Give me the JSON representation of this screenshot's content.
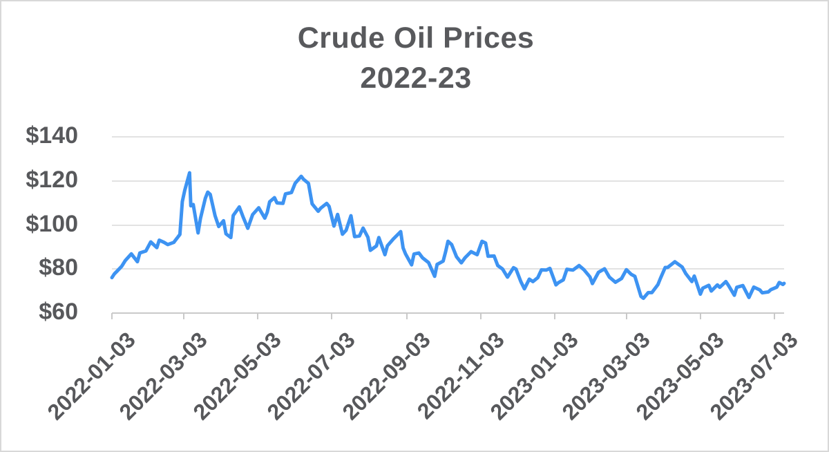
{
  "chart": {
    "title_line1": "Crude Oil Prices",
    "title_line2": "2022-23"
  },
  "chart_data": {
    "type": "line",
    "title": "Crude Oil Prices 2022-23",
    "xlabel": "",
    "ylabel": "",
    "ylim": [
      60,
      140
    ],
    "grid": "horizontal",
    "legend": "none",
    "line_color": "#3d93f2",
    "text_color": "#57585b",
    "y_ticks": [
      {
        "label": "$140",
        "value": 140
      },
      {
        "label": "$120",
        "value": 120
      },
      {
        "label": "$100",
        "value": 100
      },
      {
        "label": "$80",
        "value": 80
      },
      {
        "label": "$60",
        "value": 60
      }
    ],
    "x_ticks": [
      "2022-01-03",
      "2022-03-03",
      "2022-05-03",
      "2022-07-03",
      "2022-09-03",
      "2022-11-03",
      "2023-01-03",
      "2023-03-03",
      "2023-05-03",
      "2023-07-03"
    ],
    "points": [
      [
        "2022-01-03",
        76.1
      ],
      [
        "2022-01-05",
        77.8
      ],
      [
        "2022-01-07",
        78.9
      ],
      [
        "2022-01-11",
        81.2
      ],
      [
        "2022-01-14",
        83.8
      ],
      [
        "2022-01-19",
        86.9
      ],
      [
        "2022-01-24",
        83.3
      ],
      [
        "2022-01-26",
        87.3
      ],
      [
        "2022-01-31",
        88.2
      ],
      [
        "2022-02-04",
        92.3
      ],
      [
        "2022-02-09",
        89.7
      ],
      [
        "2022-02-11",
        93.1
      ],
      [
        "2022-02-15",
        92.1
      ],
      [
        "2022-02-18",
        91.1
      ],
      [
        "2022-02-23",
        92.1
      ],
      [
        "2022-02-28",
        95.7
      ],
      [
        "2022-03-02",
        110.6
      ],
      [
        "2022-03-04",
        115.7
      ],
      [
        "2022-03-08",
        123.7
      ],
      [
        "2022-03-09",
        108.7
      ],
      [
        "2022-03-11",
        109.3
      ],
      [
        "2022-03-15",
        96.4
      ],
      [
        "2022-03-17",
        103.0
      ],
      [
        "2022-03-21",
        112.1
      ],
      [
        "2022-03-23",
        114.9
      ],
      [
        "2022-03-25",
        113.9
      ],
      [
        "2022-03-29",
        104.2
      ],
      [
        "2022-04-01",
        99.3
      ],
      [
        "2022-04-05",
        101.9
      ],
      [
        "2022-04-07",
        96.0
      ],
      [
        "2022-04-11",
        94.3
      ],
      [
        "2022-04-13",
        104.3
      ],
      [
        "2022-04-18",
        108.2
      ],
      [
        "2022-04-21",
        103.8
      ],
      [
        "2022-04-25",
        98.5
      ],
      [
        "2022-04-29",
        104.7
      ],
      [
        "2022-05-04",
        107.8
      ],
      [
        "2022-05-09",
        103.1
      ],
      [
        "2022-05-11",
        105.7
      ],
      [
        "2022-05-13",
        110.5
      ],
      [
        "2022-05-17",
        112.4
      ],
      [
        "2022-05-19",
        110.0
      ],
      [
        "2022-05-24",
        109.8
      ],
      [
        "2022-05-26",
        114.1
      ],
      [
        "2022-05-31",
        114.7
      ],
      [
        "2022-06-03",
        118.9
      ],
      [
        "2022-06-08",
        122.1
      ],
      [
        "2022-06-10",
        120.7
      ],
      [
        "2022-06-14",
        118.9
      ],
      [
        "2022-06-17",
        109.6
      ],
      [
        "2022-06-22",
        106.2
      ],
      [
        "2022-06-24",
        107.6
      ],
      [
        "2022-06-29",
        109.8
      ],
      [
        "2022-07-01",
        108.4
      ],
      [
        "2022-07-05",
        99.5
      ],
      [
        "2022-07-08",
        104.8
      ],
      [
        "2022-07-12",
        95.8
      ],
      [
        "2022-07-15",
        97.6
      ],
      [
        "2022-07-19",
        104.2
      ],
      [
        "2022-07-22",
        94.7
      ],
      [
        "2022-07-26",
        95.0
      ],
      [
        "2022-07-29",
        98.6
      ],
      [
        "2022-08-02",
        94.4
      ],
      [
        "2022-08-04",
        88.5
      ],
      [
        "2022-08-09",
        90.5
      ],
      [
        "2022-08-11",
        94.3
      ],
      [
        "2022-08-16",
        86.5
      ],
      [
        "2022-08-18",
        90.5
      ],
      [
        "2022-08-23",
        93.7
      ],
      [
        "2022-08-29",
        97.0
      ],
      [
        "2022-08-31",
        89.6
      ],
      [
        "2022-09-02",
        86.9
      ],
      [
        "2022-09-07",
        81.9
      ],
      [
        "2022-09-09",
        86.8
      ],
      [
        "2022-09-13",
        87.3
      ],
      [
        "2022-09-16",
        85.1
      ],
      [
        "2022-09-21",
        82.9
      ],
      [
        "2022-09-26",
        76.7
      ],
      [
        "2022-09-28",
        82.1
      ],
      [
        "2022-10-03",
        83.6
      ],
      [
        "2022-10-05",
        87.8
      ],
      [
        "2022-10-07",
        92.6
      ],
      [
        "2022-10-10",
        91.1
      ],
      [
        "2022-10-14",
        85.6
      ],
      [
        "2022-10-18",
        82.8
      ],
      [
        "2022-10-21",
        85.1
      ],
      [
        "2022-10-26",
        87.9
      ],
      [
        "2022-10-31",
        86.5
      ],
      [
        "2022-11-04",
        92.6
      ],
      [
        "2022-11-07",
        91.8
      ],
      [
        "2022-11-09",
        85.8
      ],
      [
        "2022-11-14",
        85.9
      ],
      [
        "2022-11-17",
        81.6
      ],
      [
        "2022-11-21",
        80.0
      ],
      [
        "2022-11-25",
        76.3
      ],
      [
        "2022-11-30",
        80.6
      ],
      [
        "2022-12-02",
        80.0
      ],
      [
        "2022-12-06",
        74.3
      ],
      [
        "2022-12-09",
        71.0
      ],
      [
        "2022-12-13",
        75.4
      ],
      [
        "2022-12-16",
        74.3
      ],
      [
        "2022-12-20",
        76.1
      ],
      [
        "2022-12-23",
        79.6
      ],
      [
        "2022-12-27",
        79.5
      ],
      [
        "2022-12-30",
        80.3
      ],
      [
        "2023-01-04",
        72.8
      ],
      [
        "2023-01-06",
        73.8
      ],
      [
        "2023-01-10",
        75.1
      ],
      [
        "2023-01-13",
        79.9
      ],
      [
        "2023-01-18",
        79.5
      ],
      [
        "2023-01-23",
        81.6
      ],
      [
        "2023-01-27",
        79.7
      ],
      [
        "2023-02-01",
        76.4
      ],
      [
        "2023-02-03",
        73.4
      ],
      [
        "2023-02-08",
        78.5
      ],
      [
        "2023-02-13",
        80.1
      ],
      [
        "2023-02-17",
        76.3
      ],
      [
        "2023-02-22",
        74.0
      ],
      [
        "2023-02-27",
        75.7
      ],
      [
        "2023-03-03",
        79.7
      ],
      [
        "2023-03-07",
        77.6
      ],
      [
        "2023-03-10",
        76.7
      ],
      [
        "2023-03-15",
        67.6
      ],
      [
        "2023-03-17",
        66.7
      ],
      [
        "2023-03-21",
        69.3
      ],
      [
        "2023-03-24",
        69.3
      ],
      [
        "2023-03-29",
        72.9
      ],
      [
        "2023-03-31",
        75.7
      ],
      [
        "2023-04-04",
        80.7
      ],
      [
        "2023-04-06",
        80.7
      ],
      [
        "2023-04-12",
        83.3
      ],
      [
        "2023-04-14",
        82.5
      ],
      [
        "2023-04-18",
        80.9
      ],
      [
        "2023-04-21",
        77.9
      ],
      [
        "2023-04-26",
        74.3
      ],
      [
        "2023-04-28",
        76.8
      ],
      [
        "2023-05-03",
        68.6
      ],
      [
        "2023-05-05",
        71.3
      ],
      [
        "2023-05-10",
        72.6
      ],
      [
        "2023-05-12",
        70.0
      ],
      [
        "2023-05-17",
        72.8
      ],
      [
        "2023-05-19",
        71.7
      ],
      [
        "2023-05-24",
        74.3
      ],
      [
        "2023-05-26",
        72.7
      ],
      [
        "2023-05-31",
        68.1
      ],
      [
        "2023-06-02",
        71.7
      ],
      [
        "2023-06-07",
        72.5
      ],
      [
        "2023-06-12",
        67.1
      ],
      [
        "2023-06-16",
        71.8
      ],
      [
        "2023-06-21",
        70.5
      ],
      [
        "2023-06-23",
        69.2
      ],
      [
        "2023-06-28",
        69.6
      ],
      [
        "2023-06-30",
        70.6
      ],
      [
        "2023-07-05",
        71.8
      ],
      [
        "2023-07-07",
        73.9
      ],
      [
        "2023-07-10",
        73.0
      ],
      [
        "2023-07-11",
        73.5
      ]
    ]
  }
}
